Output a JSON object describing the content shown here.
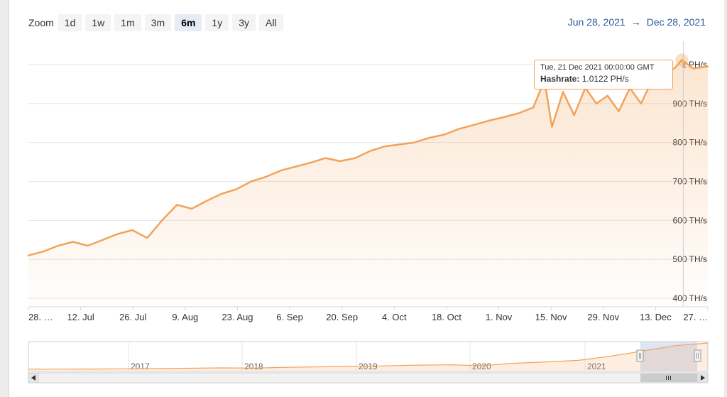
{
  "zoom": {
    "label": "Zoom",
    "buttons": [
      "1d",
      "1w",
      "1m",
      "3m",
      "6m",
      "1y",
      "3y",
      "All"
    ],
    "selected": "6m"
  },
  "range": {
    "from": "Jun 28, 2021",
    "arrow": "→",
    "to": "Dec 28, 2021"
  },
  "tooltip": {
    "date": "Tue, 21 Dec 2021 00:00:00 GMT",
    "series": "Hashrate",
    "value": "1.0122 PH/s"
  },
  "colors": {
    "line": "#f2a35a",
    "selection": "#d0d8ee",
    "grid": "#e6e6e6"
  },
  "chart_data": {
    "type": "area",
    "y_unit": "TH/s",
    "ylim": [
      380,
      1060
    ],
    "y_ticks": [
      400,
      500,
      600,
      700,
      800,
      900,
      1000
    ],
    "y_tick_labels": [
      "400 TH/s",
      "500 TH/s",
      "600 TH/s",
      "700 TH/s",
      "800 TH/s",
      "900 TH/s",
      "1 PH/s"
    ],
    "x_tick_labels": [
      "28. …",
      "12. Jul",
      "26. Jul",
      "9. Aug",
      "23. Aug",
      "6. Sep",
      "20. Sep",
      "4. Oct",
      "18. Oct",
      "1. Nov",
      "15. Nov",
      "29. Nov",
      "13. Dec",
      "27. …"
    ],
    "x": [
      "2021-06-28",
      "2021-07-02",
      "2021-07-06",
      "2021-07-10",
      "2021-07-14",
      "2021-07-18",
      "2021-07-22",
      "2021-07-26",
      "2021-07-30",
      "2021-08-03",
      "2021-08-07",
      "2021-08-11",
      "2021-08-15",
      "2021-08-19",
      "2021-08-23",
      "2021-08-27",
      "2021-08-31",
      "2021-09-04",
      "2021-09-08",
      "2021-09-12",
      "2021-09-16",
      "2021-09-20",
      "2021-09-24",
      "2021-09-28",
      "2021-10-02",
      "2021-10-06",
      "2021-10-10",
      "2021-10-14",
      "2021-10-18",
      "2021-10-22",
      "2021-10-26",
      "2021-10-30",
      "2021-11-03",
      "2021-11-07",
      "2021-11-11",
      "2021-11-14",
      "2021-11-16",
      "2021-11-19",
      "2021-11-22",
      "2021-11-25",
      "2021-11-28",
      "2021-12-01",
      "2021-12-04",
      "2021-12-07",
      "2021-12-10",
      "2021-12-13",
      "2021-12-16",
      "2021-12-19",
      "2021-12-21",
      "2021-12-24",
      "2021-12-28"
    ],
    "values": [
      510,
      520,
      535,
      545,
      535,
      550,
      565,
      575,
      555,
      600,
      640,
      630,
      650,
      668,
      680,
      700,
      712,
      728,
      738,
      748,
      760,
      752,
      760,
      778,
      790,
      795,
      800,
      812,
      820,
      835,
      845,
      856,
      865,
      875,
      890,
      960,
      840,
      930,
      870,
      940,
      900,
      920,
      880,
      940,
      900,
      960,
      985,
      990,
      1012,
      990,
      995
    ],
    "navigator": {
      "x_labels": [
        "2017",
        "2018",
        "2019",
        "2020",
        "2021"
      ],
      "values": [
        5,
        8,
        12,
        18,
        28,
        40,
        55,
        45,
        75,
        95,
        110,
        130,
        160,
        170,
        140,
        230,
        280,
        340,
        500,
        700,
        900,
        1000
      ]
    }
  }
}
